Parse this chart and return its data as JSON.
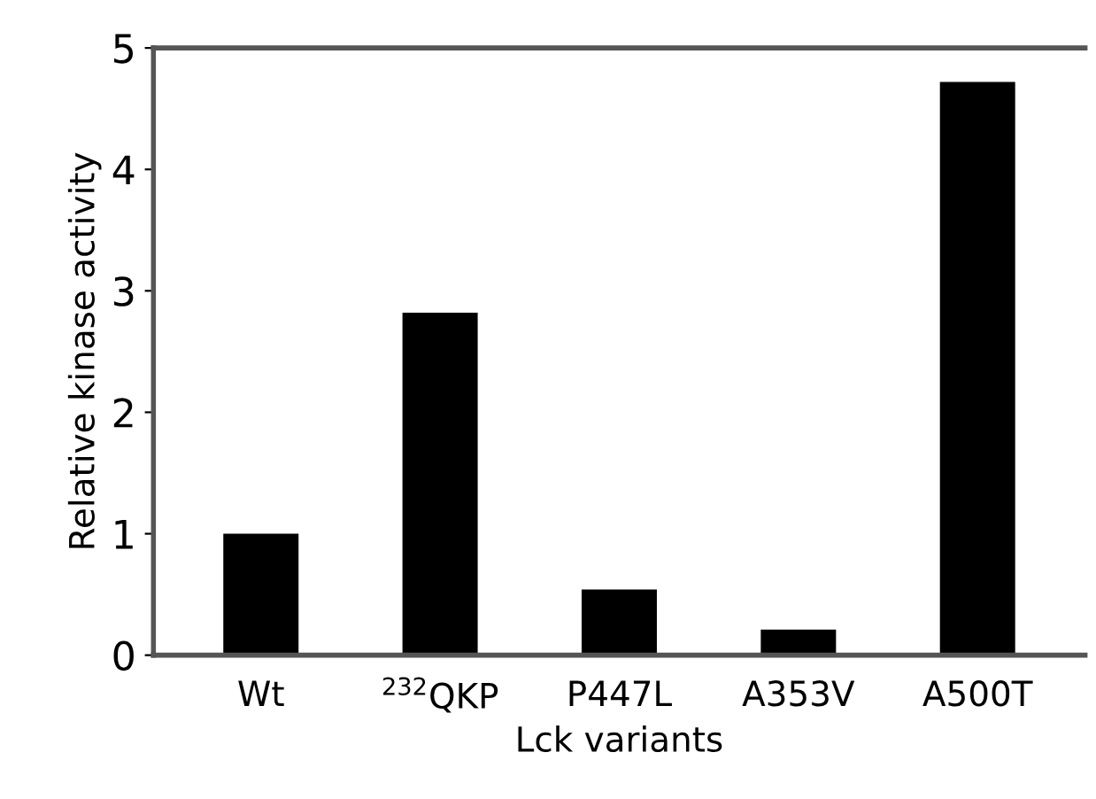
{
  "chart_data": {
    "type": "bar",
    "xlabel": "Lck variants",
    "ylabel": "Relative kinase activity",
    "categories": [
      "Wt",
      "$^{232}$QKP",
      "P447L",
      "A353V",
      "A500T"
    ],
    "values": [
      1.0,
      2.82,
      0.54,
      0.21,
      4.72
    ],
    "color": "#000000",
    "ylim": [
      0,
      5
    ],
    "yticks": [
      0,
      1,
      2,
      3,
      4,
      5
    ],
    "grid": false,
    "legend": false
  }
}
